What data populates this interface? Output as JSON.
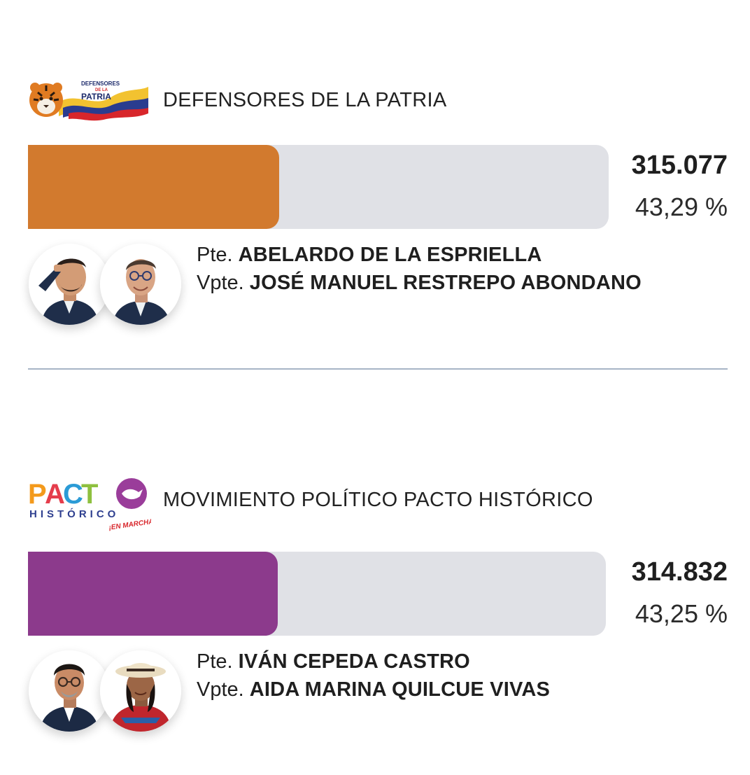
{
  "colors": {
    "track": "#e0e1e6",
    "divider": "#a7b4c6"
  },
  "candidates": [
    {
      "party_name": "DEFENSORES DE LA PATRIA",
      "logo_text_line1": "DEFENSORES",
      "logo_text_line2": "DE LA",
      "logo_text_line3": "PATRIA",
      "votes": "315.077",
      "percent": "43,29 %",
      "percent_value": 43.29,
      "bar_color": "#d27a2e",
      "president_role": "Pte.",
      "president_name": "ABELARDO DE LA ESPRIELLA",
      "vice_role": "Vpte.",
      "vice_name": "JOSÉ MANUEL RESTREPO ABONDANO",
      "president_avatar_icon": "man-saluting-portrait-icon",
      "vice_avatar_icon": "man-with-glasses-portrait-icon"
    },
    {
      "party_name": "MOVIMIENTO POLÍTICO PACTO HISTÓRICO",
      "logo_text_line1": "PACTO",
      "logo_text_line2": "HISTÓRICO",
      "logo_text_line3": "¡EN MARCHA!",
      "votes": "314.832",
      "percent": "43,25 %",
      "percent_value": 43.25,
      "bar_color": "#8c3a8c",
      "president_role": "Pte.",
      "president_name": "IVÁN CEPEDA CASTRO",
      "vice_role": "Vpte.",
      "vice_name": "AIDA MARINA QUILCUE VIVAS",
      "president_avatar_icon": "man-with-glasses-portrait-icon",
      "vice_avatar_icon": "woman-with-hat-portrait-icon"
    }
  ]
}
